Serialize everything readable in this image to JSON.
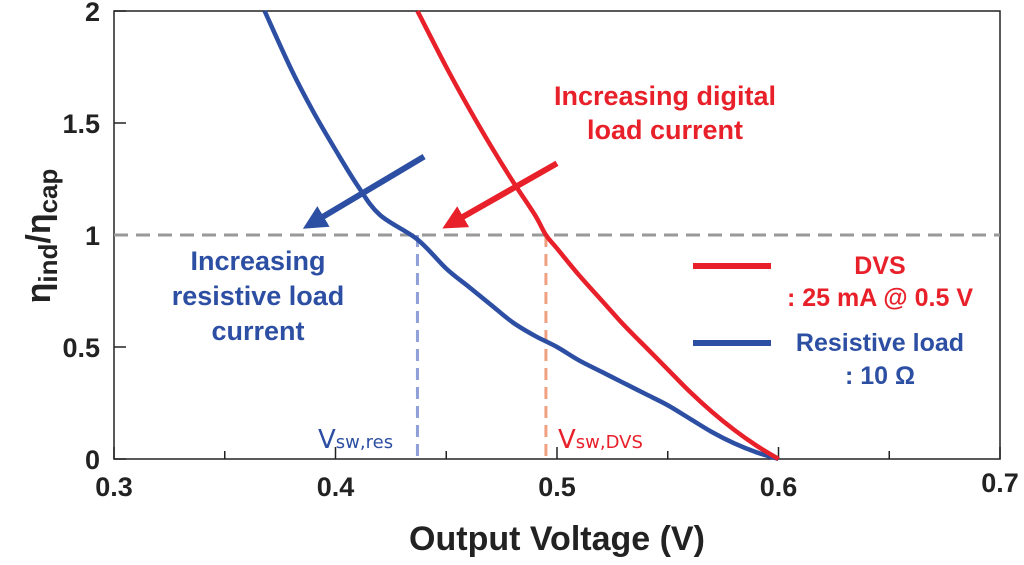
{
  "chart_data": {
    "type": "line",
    "xlabel": "Output Voltage (V)",
    "ylabel_main": "η",
    "ylabel_num_sub": "ind",
    "ylabel_sep": "/η",
    "ylabel_den_sub": "cap",
    "xlim": [
      0.3,
      0.7
    ],
    "ylim": [
      0,
      2
    ],
    "xticks": [
      0.3,
      0.4,
      0.5,
      0.6,
      0.7
    ],
    "xtick_labels": [
      "0.3",
      "0.4",
      "0.5",
      "0.6",
      "0.7"
    ],
    "yticks": [
      0,
      0.5,
      1,
      1.5,
      2
    ],
    "ytick_labels": [
      "0",
      "0.5",
      "1",
      "1.5",
      "2"
    ],
    "reference_line": {
      "y": 1
    },
    "series": [
      {
        "name": "DVS",
        "legend_line1": "DVS",
        "legend_line2": ": 25 mA @ 0.5 V",
        "color": "#e8202a",
        "points": [
          [
            0.437,
            2.0
          ],
          [
            0.45,
            1.75
          ],
          [
            0.46,
            1.57
          ],
          [
            0.47,
            1.4
          ],
          [
            0.48,
            1.24
          ],
          [
            0.49,
            1.09
          ],
          [
            0.495,
            1.0
          ],
          [
            0.5,
            0.94
          ],
          [
            0.51,
            0.82
          ],
          [
            0.52,
            0.71
          ],
          [
            0.53,
            0.6
          ],
          [
            0.54,
            0.5
          ],
          [
            0.55,
            0.4
          ],
          [
            0.56,
            0.3
          ],
          [
            0.57,
            0.21
          ],
          [
            0.58,
            0.13
          ],
          [
            0.59,
            0.06
          ],
          [
            0.6,
            0.0
          ]
        ]
      },
      {
        "name": "Resistive load",
        "legend_line1": "Resistive load",
        "legend_line2": ": 10 Ω",
        "color": "#2d4fa3",
        "points": [
          [
            0.368,
            2.0
          ],
          [
            0.38,
            1.74
          ],
          [
            0.39,
            1.55
          ],
          [
            0.4,
            1.38
          ],
          [
            0.41,
            1.22
          ],
          [
            0.42,
            1.09
          ],
          [
            0.437,
            0.98
          ],
          [
            0.45,
            0.85
          ],
          [
            0.46,
            0.77
          ],
          [
            0.47,
            0.69
          ],
          [
            0.48,
            0.61
          ],
          [
            0.49,
            0.55
          ],
          [
            0.5,
            0.5
          ],
          [
            0.51,
            0.44
          ],
          [
            0.52,
            0.39
          ],
          [
            0.53,
            0.34
          ],
          [
            0.54,
            0.29
          ],
          [
            0.55,
            0.24
          ],
          [
            0.56,
            0.18
          ],
          [
            0.57,
            0.12
          ],
          [
            0.58,
            0.07
          ],
          [
            0.59,
            0.03
          ],
          [
            0.6,
            0.0
          ]
        ]
      }
    ],
    "annotations": {
      "digital_line1": "Increasing digital",
      "digital_line2": "load current",
      "resistive_line1": "Increasing",
      "resistive_line2": "resistive load",
      "resistive_line3": "current",
      "vsw_res_main": "V",
      "vsw_res_sub": "sw,res",
      "vsw_res_x": 0.437,
      "vsw_dvs_main": "V",
      "vsw_dvs_sub": "sw,DVS",
      "vsw_dvs_x": 0.495,
      "arrow_res_from": [
        0.44,
        1.35
      ],
      "arrow_res_to": [
        0.389,
        1.05
      ],
      "arrow_dvs_from": [
        0.5,
        1.32
      ],
      "arrow_dvs_to": [
        0.452,
        1.05
      ]
    },
    "colors": {
      "dvs": "#e8202a",
      "res": "#2d4fa3",
      "vsw_dvs_line": "#f0a080",
      "vsw_res_line": "#8f9fd8",
      "reference": "#999999",
      "axis": "#222222"
    }
  }
}
